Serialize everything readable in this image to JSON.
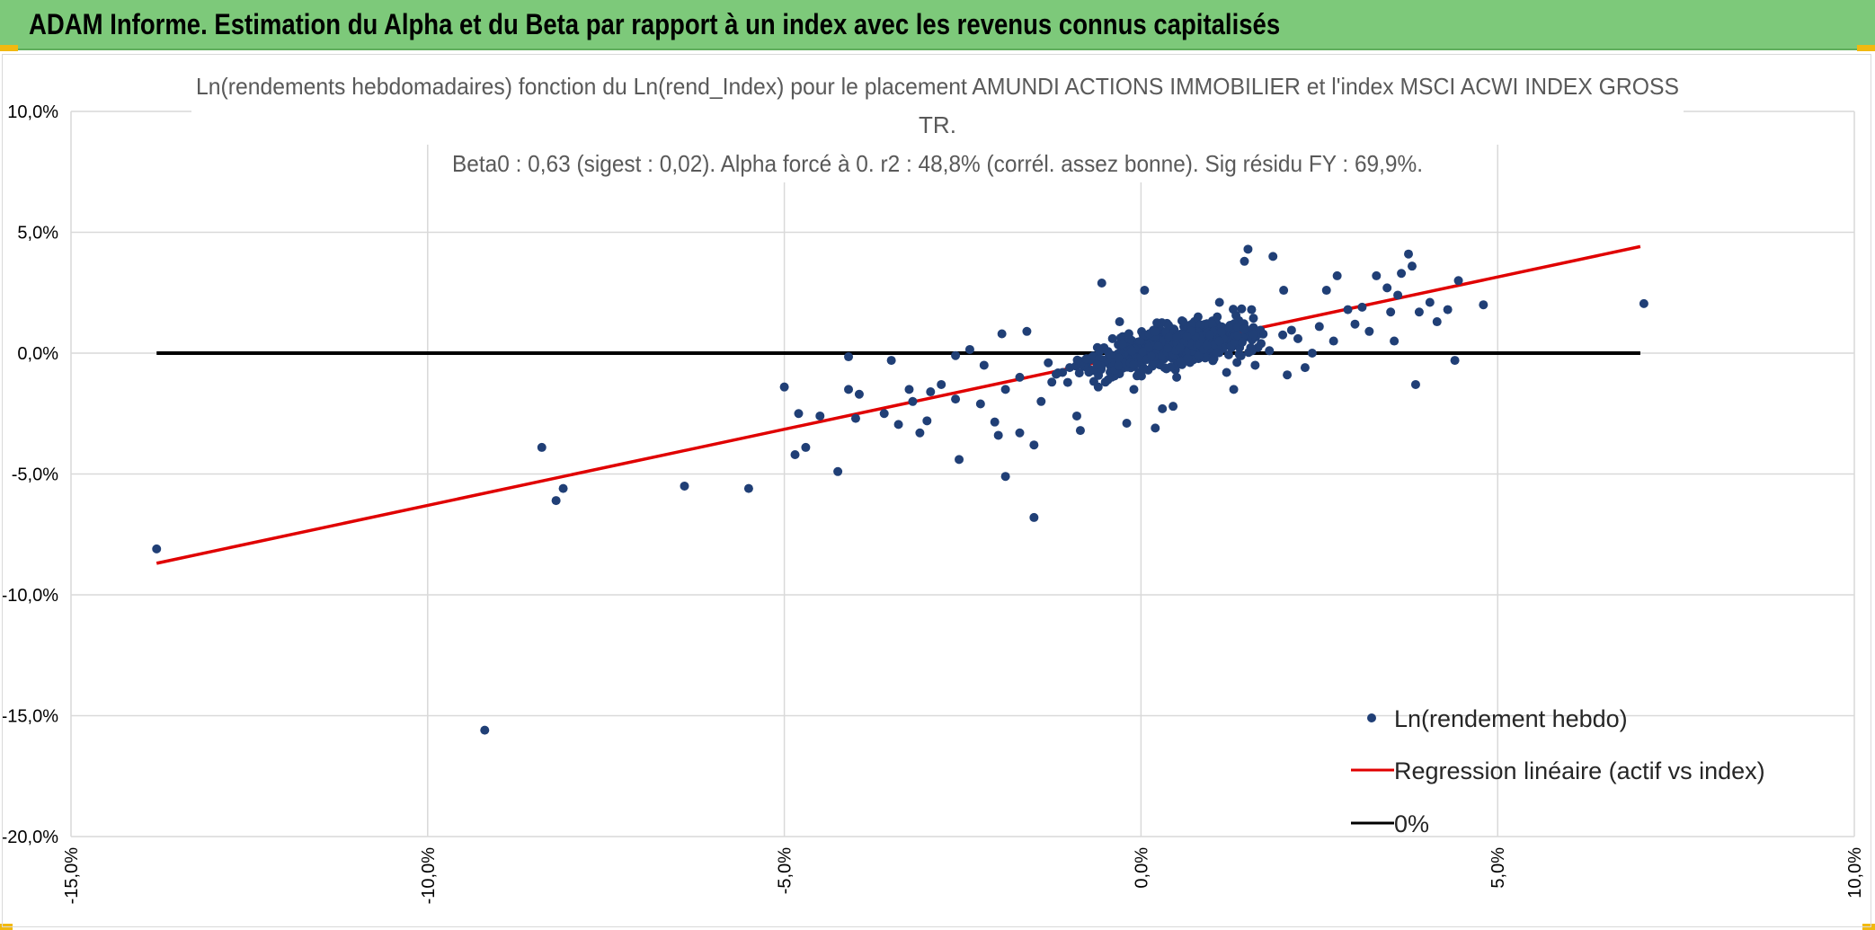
{
  "header": {
    "title": "ADAM Informe. Estimation du Alpha et du Beta par rapport à un index avec les revenus connus capitalisés"
  },
  "colors": {
    "header_bg": "#7dc97a",
    "corner_accent": "#f2b90f",
    "points": "#203f76",
    "regression": "#e00000",
    "zero_line": "#000000",
    "grid": "#d9d9d9"
  },
  "chart_data": {
    "type": "scatter",
    "title_lines": [
      "Ln(rendements hebdomadaires) fonction du Ln(rend_Index) pour le placement AMUNDI ACTIONS IMMOBILIER et l'index MSCI ACWI INDEX GROSS",
      "TR.",
      "Beta0 : 0,63 (sigest : 0,02). Alpha forcé à 0. r2 : 48,8% (corrél. assez bonne). Sig résidu FY : 69,9%."
    ],
    "xlabel": "",
    "ylabel": "",
    "xlim": [
      -15,
      10
    ],
    "ylim": [
      -20,
      10
    ],
    "x_ticks": [
      -15,
      -10,
      -5,
      0,
      5,
      10
    ],
    "y_ticks": [
      10,
      5,
      0,
      -5,
      -10,
      -15,
      -20
    ],
    "x_tick_labels": [
      "-15,0%",
      "-10,0%",
      "-5,0%",
      "0,0%",
      "5,0%",
      "10,0%"
    ],
    "y_tick_labels": [
      "10,0%",
      "5,0%",
      "0,0%",
      "-5,0%",
      "-10,0%",
      "-15,0%",
      "-20,0%"
    ],
    "grid": true,
    "legend_position": "bottom-right",
    "legend": [
      {
        "label": "Ln(rendement hebdo)",
        "type": "marker"
      },
      {
        "label": "Regression linéaire (actif vs index)",
        "type": "line",
        "color": "#e00000"
      },
      {
        "label": "0%",
        "type": "line",
        "color": "#000000"
      }
    ],
    "series": [
      {
        "name": "Ln(rendement hebdo)",
        "type": "scatter",
        "points": [
          [
            -13.8,
            -8.1
          ],
          [
            -9.2,
            -15.6
          ],
          [
            -8.4,
            -3.9
          ],
          [
            -8.1,
            -5.6
          ],
          [
            -8.2,
            -6.1
          ],
          [
            -6.4,
            -5.5
          ],
          [
            -5.5,
            -5.6
          ],
          [
            -5.0,
            -1.4
          ],
          [
            -4.85,
            -4.2
          ],
          [
            -4.7,
            -3.9
          ],
          [
            -4.8,
            -2.5
          ],
          [
            -4.5,
            -2.6
          ],
          [
            -4.25,
            -4.9
          ],
          [
            -4.1,
            -0.15
          ],
          [
            -4.0,
            -2.7
          ],
          [
            -4.1,
            -1.5
          ],
          [
            -3.95,
            -1.7
          ],
          [
            -3.6,
            -2.5
          ],
          [
            -3.4,
            -2.95
          ],
          [
            -3.1,
            -3.3
          ],
          [
            -3.0,
            -2.8
          ],
          [
            -3.25,
            -1.5
          ],
          [
            -3.5,
            -0.3
          ],
          [
            -2.95,
            -1.6
          ],
          [
            -2.8,
            -1.3
          ],
          [
            -2.55,
            -4.4
          ],
          [
            -2.6,
            -0.1
          ],
          [
            -2.4,
            0.15
          ],
          [
            -2.25,
            -2.1
          ],
          [
            -2.05,
            -2.85
          ],
          [
            -2.0,
            -3.4
          ],
          [
            -1.9,
            -5.1
          ],
          [
            -1.7,
            -3.3
          ],
          [
            -1.5,
            -3.8
          ],
          [
            -1.5,
            -6.8
          ],
          [
            -1.95,
            0.8
          ],
          [
            -1.6,
            0.9
          ],
          [
            -1.7,
            -1.0
          ],
          [
            -1.9,
            -1.5
          ],
          [
            -1.4,
            -2.0
          ],
          [
            -1.25,
            -1.2
          ],
          [
            -1.1,
            -0.8
          ],
          [
            -1.0,
            -0.6
          ],
          [
            -0.9,
            -2.6
          ],
          [
            -0.85,
            -3.2
          ],
          [
            -0.6,
            -1.4
          ],
          [
            -0.55,
            2.9
          ],
          [
            -0.3,
            -0.4
          ],
          [
            -0.2,
            -2.9
          ],
          [
            -0.1,
            -1.5
          ],
          [
            0.05,
            2.6
          ],
          [
            0.2,
            -3.1
          ],
          [
            0.3,
            -2.3
          ],
          [
            0.45,
            -2.2
          ],
          [
            0.6,
            1.1
          ],
          [
            0.8,
            1.5
          ],
          [
            1.2,
            -0.8
          ],
          [
            1.3,
            -1.5
          ],
          [
            1.45,
            3.8
          ],
          [
            1.5,
            4.3
          ],
          [
            1.85,
            4.0
          ],
          [
            1.55,
            1.8
          ],
          [
            2.0,
            2.6
          ],
          [
            2.05,
            -0.9
          ],
          [
            2.3,
            -0.6
          ],
          [
            2.5,
            1.1
          ],
          [
            2.6,
            2.6
          ],
          [
            2.75,
            3.2
          ],
          [
            2.9,
            1.8
          ],
          [
            3.1,
            1.9
          ],
          [
            3.2,
            0.9
          ],
          [
            3.3,
            3.2
          ],
          [
            3.45,
            2.7
          ],
          [
            3.5,
            1.7
          ],
          [
            3.55,
            0.5
          ],
          [
            3.6,
            2.4
          ],
          [
            3.65,
            3.3
          ],
          [
            3.75,
            4.1
          ],
          [
            3.8,
            3.6
          ],
          [
            3.85,
            -1.3
          ],
          [
            3.9,
            1.7
          ],
          [
            4.05,
            2.1
          ],
          [
            4.15,
            1.3
          ],
          [
            4.3,
            1.8
          ],
          [
            4.4,
            -0.3
          ],
          [
            4.45,
            3.0
          ],
          [
            4.8,
            2.0
          ],
          [
            7.05,
            2.05
          ],
          [
            1.1,
            2.1
          ],
          [
            0.9,
            -0.2
          ],
          [
            0.7,
            0.4
          ],
          [
            1.6,
            -0.5
          ],
          [
            1.0,
            0.6
          ],
          [
            0.3,
            0.9
          ],
          [
            -0.4,
            0.6
          ],
          [
            -0.7,
            -0.2
          ],
          [
            -0.3,
            1.3
          ],
          [
            0.1,
            -0.7
          ],
          [
            2.2,
            0.6
          ],
          [
            1.8,
            0.1
          ],
          [
            2.4,
            0.0
          ],
          [
            2.7,
            0.5
          ],
          [
            3.0,
            1.2
          ],
          [
            1.3,
            1.2
          ],
          [
            0.5,
            -1.0
          ],
          [
            -0.15,
            -0.5
          ],
          [
            -0.5,
            -1.2
          ],
          [
            -1.3,
            -0.4
          ],
          [
            -2.2,
            -0.5
          ],
          [
            -3.2,
            -2.0
          ],
          [
            -2.6,
            -1.9
          ]
        ]
      },
      {
        "name": "Regression linéaire (actif vs index)",
        "type": "line",
        "beta": 0.63,
        "alpha": 0,
        "x": [
          -13.8,
          7.0
        ]
      },
      {
        "name": "0%",
        "type": "line",
        "x": [
          -13.8,
          7.0
        ],
        "y": [
          0,
          0
        ]
      }
    ]
  }
}
